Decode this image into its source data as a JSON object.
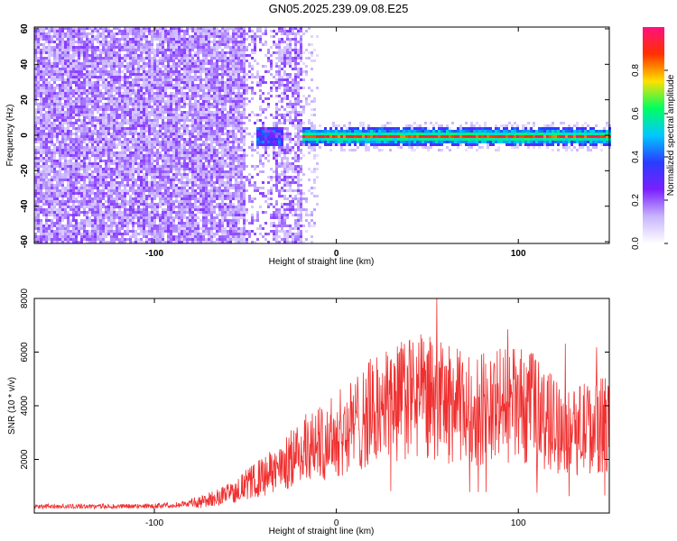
{
  "title": "GN05.2025.239.09.08.E25",
  "chart_data": [
    {
      "type": "heatmap",
      "xlabel": "Height of straight line (km)",
      "ylabel": "Frequency (Hz)",
      "xlim": [
        -166,
        150
      ],
      "ylim": [
        -61,
        61
      ],
      "x_ticks": [
        -100,
        0,
        100
      ],
      "y_ticks": [
        -60,
        -40,
        -20,
        0,
        20,
        40,
        60
      ],
      "colorbar": {
        "label": "Normalized spectral amplitude",
        "range": [
          0,
          1
        ],
        "ticks": [
          "0.0",
          "0.2",
          "0.4",
          "0.6",
          "0.8"
        ],
        "colors": [
          "#ffffff",
          "#c8b4ff",
          "#7a1fff",
          "#2a3cff",
          "#00c8ff",
          "#00ff60",
          "#ffe000",
          "#ff3000",
          "#ff1080"
        ]
      },
      "description_bands": {
        "broadband_noise_x_range": [
          -166,
          -20
        ],
        "noise_amplitude": 0.15,
        "signal_line_frequency_hz": 0,
        "signal_line_start_km": -20,
        "signal_line_peak_amplitude": 0.95
      }
    },
    {
      "type": "line",
      "xlabel": "Height of straight line (km)",
      "ylabel": "SNR (10 * v/v)",
      "xlim": [
        -166,
        150
      ],
      "ylim": [
        0,
        8000
      ],
      "x_ticks": [
        -100,
        0,
        100
      ],
      "y_ticks": [
        2000,
        4000,
        6000,
        8000
      ],
      "series": [
        {
          "color": "#f03030",
          "x": [
            -166,
            -140,
            -110,
            -90,
            -75,
            -60,
            -45,
            -30,
            -20,
            -10,
            0,
            10,
            20,
            30,
            40,
            50,
            60,
            70,
            80,
            90,
            100,
            110,
            120,
            130,
            140,
            150
          ],
          "y": [
            250,
            250,
            250,
            300,
            400,
            700,
            1200,
            1700,
            2300,
            2600,
            2900,
            3300,
            3800,
            4100,
            4300,
            4300,
            4100,
            3900,
            3900,
            4000,
            4000,
            3800,
            3300,
            3100,
            3200,
            3300
          ]
        }
      ]
    }
  ]
}
